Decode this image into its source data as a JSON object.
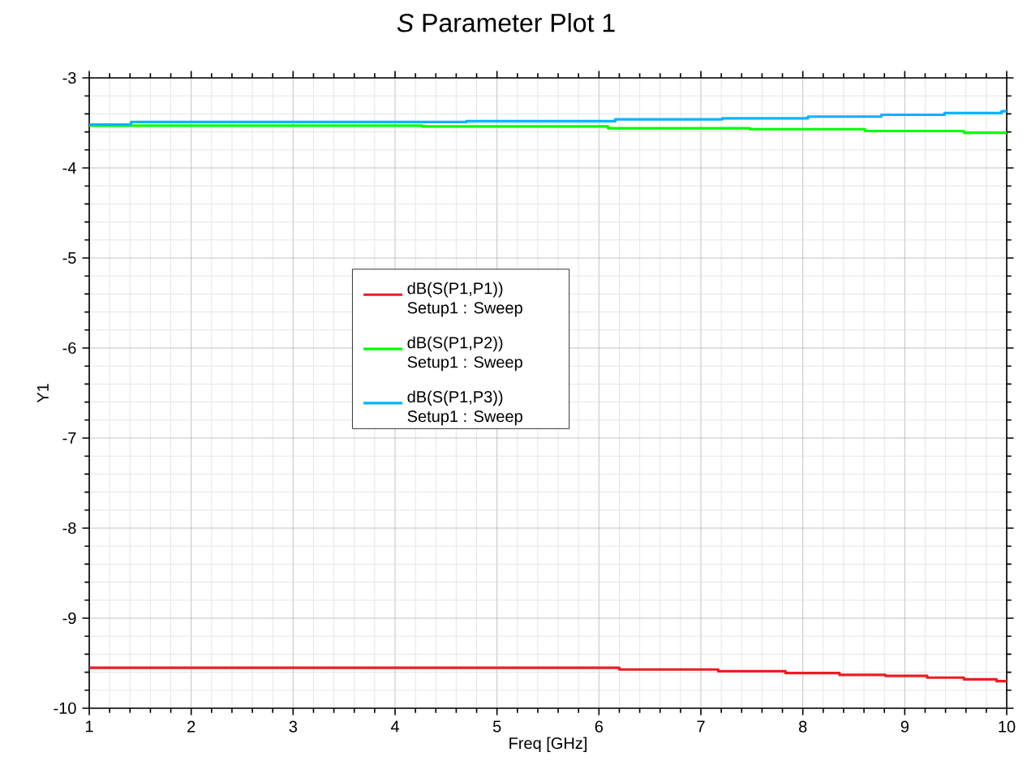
{
  "chart_data": {
    "type": "step",
    "title": "*S* Parameter Plot 1",
    "xlabel": "Freq [GHz]",
    "ylabel": "Y1",
    "xlim": [
      1,
      10
    ],
    "ylim": [
      -10,
      -3
    ],
    "xticks": [
      1,
      2,
      3,
      4,
      5,
      6,
      7,
      8,
      9,
      10
    ],
    "yticks": [
      -10,
      -9,
      -8,
      -7,
      -6,
      -5,
      -4,
      -3
    ],
    "grid": true,
    "legend": "center",
    "marker": "none",
    "line_style": "solid",
    "series": [
      {
        "name": "dB(S(P1,P1)) Setup1 : Sweep",
        "color": "#ed1c24",
        "x": [
          1,
          6.2,
          7.17,
          7.83,
          8.36,
          8.81,
          9.22,
          9.58,
          9.9,
          10
        ],
        "values": [
          -9.55,
          -9.57,
          -9.59,
          -9.61,
          -9.63,
          -9.64,
          -9.66,
          -9.68,
          -9.7,
          -9.7
        ]
      },
      {
        "name": "dB(S(P1,P2)) Setup1 : Sweep",
        "color": "#00ff00",
        "x": [
          1,
          4.27,
          6.09,
          7.48,
          8.61,
          9.58,
          10
        ],
        "values": [
          -3.53,
          -3.54,
          -3.56,
          -3.57,
          -3.59,
          -3.61,
          -3.61
        ]
      },
      {
        "name": "dB(S(P1,P3)) Setup1 : Sweep",
        "color": "#00b4ff",
        "x": [
          1,
          1.41,
          4.7,
          6.16,
          7.21,
          8.05,
          8.77,
          9.39,
          9.95,
          10
        ],
        "values": [
          -3.52,
          -3.49,
          -3.48,
          -3.46,
          -3.45,
          -3.43,
          -3.41,
          -3.39,
          -3.37,
          -3.37
        ]
      }
    ]
  }
}
